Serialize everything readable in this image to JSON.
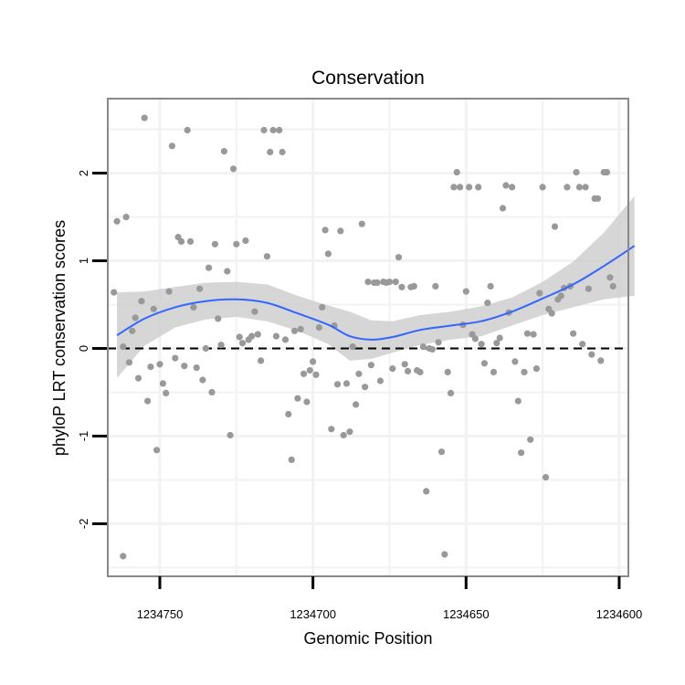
{
  "chart_data": {
    "type": "scatter",
    "title": "Conservation",
    "xlabel": "Genomic Position",
    "ylabel": "phyloP LRT conservation scores",
    "x_reversed": true,
    "xlim": [
      1234767,
      1234597
    ],
    "ylim": [
      -2.6,
      2.85
    ],
    "x_ticks": [
      1234750,
      1234700,
      1234650,
      1234600
    ],
    "y_ticks": [
      -2,
      -1,
      0,
      1,
      2
    ],
    "hline": 0,
    "colors": {
      "points": "#999999",
      "smooth": "#3366ff",
      "ribbon": "#cccccc",
      "panel_border": "#888888",
      "grid": "#f2f2f2"
    },
    "points": [
      [
        1234765,
        0.64
      ],
      [
        1234764,
        1.45
      ],
      [
        1234761,
        1.5
      ],
      [
        1234762,
        0.02
      ],
      [
        1234762,
        -2.37
      ],
      [
        1234760,
        -0.16
      ],
      [
        1234759,
        0.2
      ],
      [
        1234758,
        0.35
      ],
      [
        1234757,
        -0.34
      ],
      [
        1234756,
        0.54
      ],
      [
        1234755,
        2.63
      ],
      [
        1234754,
        -0.6
      ],
      [
        1234753,
        -0.21
      ],
      [
        1234752,
        0.45
      ],
      [
        1234751,
        -1.16
      ],
      [
        1234750,
        -0.18
      ],
      [
        1234749,
        -0.4
      ],
      [
        1234748,
        -0.51
      ],
      [
        1234747,
        0.65
      ],
      [
        1234746,
        2.31
      ],
      [
        1234745,
        -0.11
      ],
      [
        1234744,
        1.27
      ],
      [
        1234743,
        1.22
      ],
      [
        1234742,
        -0.2
      ],
      [
        1234741,
        2.49
      ],
      [
        1234740,
        1.22
      ],
      [
        1234739,
        0.47
      ],
      [
        1234738,
        -0.22
      ],
      [
        1234737,
        0.68
      ],
      [
        1234736,
        -0.36
      ],
      [
        1234735,
        0.0
      ],
      [
        1234734,
        0.92
      ],
      [
        1234733,
        -0.5
      ],
      [
        1234732,
        1.19
      ],
      [
        1234731,
        0.34
      ],
      [
        1234730,
        0.04
      ],
      [
        1234729,
        2.25
      ],
      [
        1234728,
        0.88
      ],
      [
        1234727,
        -0.99
      ],
      [
        1234726,
        2.05
      ],
      [
        1234725,
        1.19
      ],
      [
        1234724,
        0.13
      ],
      [
        1234723,
        0.06
      ],
      [
        1234722,
        1.23
      ],
      [
        1234721,
        0.1
      ],
      [
        1234720,
        0.14
      ],
      [
        1234719,
        0.42
      ],
      [
        1234718,
        0.16
      ],
      [
        1234717,
        -0.14
      ],
      [
        1234716,
        2.49
      ],
      [
        1234715,
        1.05
      ],
      [
        1234714,
        2.24
      ],
      [
        1234713,
        2.49
      ],
      [
        1234712,
        0.14
      ],
      [
        1234711,
        2.49
      ],
      [
        1234710,
        2.24
      ],
      [
        1234709,
        0.1
      ],
      [
        1234708,
        -0.75
      ],
      [
        1234707,
        -1.27
      ],
      [
        1234706,
        0.2
      ],
      [
        1234705,
        -0.57
      ],
      [
        1234704,
        0.22
      ],
      [
        1234703,
        -0.29
      ],
      [
        1234702,
        -0.61
      ],
      [
        1234701,
        -0.25
      ],
      [
        1234700,
        -0.15
      ],
      [
        1234699,
        -0.3
      ],
      [
        1234698,
        0.24
      ],
      [
        1234697,
        0.47
      ],
      [
        1234696,
        1.35
      ],
      [
        1234695,
        1.08
      ],
      [
        1234694,
        -0.92
      ],
      [
        1234693,
        0.26
      ],
      [
        1234692,
        -0.41
      ],
      [
        1234691,
        1.34
      ],
      [
        1234690,
        -0.99
      ],
      [
        1234689,
        -0.4
      ],
      [
        1234688,
        -0.95
      ],
      [
        1234687,
        0.02
      ],
      [
        1234686,
        -0.64
      ],
      [
        1234685,
        -0.29
      ],
      [
        1234684,
        1.42
      ],
      [
        1234683,
        -0.44
      ],
      [
        1234682,
        0.76
      ],
      [
        1234681,
        -0.19
      ],
      [
        1234680,
        0.75
      ],
      [
        1234679,
        0.75
      ],
      [
        1234678,
        -0.37
      ],
      [
        1234677,
        0.76
      ],
      [
        1234676,
        0.75
      ],
      [
        1234675,
        0.76
      ],
      [
        1234674,
        -0.23
      ],
      [
        1234673,
        0.76
      ],
      [
        1234672,
        1.04
      ],
      [
        1234671,
        0.7
      ],
      [
        1234670,
        -0.18
      ],
      [
        1234669,
        -0.26
      ],
      [
        1234668,
        0.7
      ],
      [
        1234667,
        0.71
      ],
      [
        1234666,
        -0.25
      ],
      [
        1234665,
        -0.27
      ],
      [
        1234664,
        0.02
      ],
      [
        1234663,
        -1.63
      ],
      [
        1234662,
        0.0
      ],
      [
        1234661,
        -0.01
      ],
      [
        1234660,
        0.71
      ],
      [
        1234659,
        0.07
      ],
      [
        1234658,
        -1.18
      ],
      [
        1234657,
        -2.35
      ],
      [
        1234656,
        -0.27
      ],
      [
        1234655,
        -0.51
      ],
      [
        1234654,
        1.84
      ],
      [
        1234653,
        2.01
      ],
      [
        1234652,
        1.84
      ],
      [
        1234651,
        0.27
      ],
      [
        1234650,
        0.65
      ],
      [
        1234649,
        1.84
      ],
      [
        1234648,
        0.16
      ],
      [
        1234647,
        0.11
      ],
      [
        1234646,
        1.84
      ],
      [
        1234645,
        0.05
      ],
      [
        1234644,
        -0.17
      ],
      [
        1234643,
        0.52
      ],
      [
        1234642,
        0.71
      ],
      [
        1234641,
        -0.27
      ],
      [
        1234640,
        0.06
      ],
      [
        1234639,
        0.12
      ],
      [
        1234638,
        1.6
      ],
      [
        1234637,
        1.86
      ],
      [
        1234636,
        0.41
      ],
      [
        1234635,
        1.84
      ],
      [
        1234634,
        -0.15
      ],
      [
        1234633,
        -0.6
      ],
      [
        1234632,
        -1.19
      ],
      [
        1234631,
        -0.27
      ],
      [
        1234630,
        0.17
      ],
      [
        1234629,
        -1.04
      ],
      [
        1234628,
        0.16
      ],
      [
        1234627,
        -0.23
      ],
      [
        1234626,
        0.63
      ],
      [
        1234625,
        1.84
      ],
      [
        1234624,
        -1.47
      ],
      [
        1234623,
        0.45
      ],
      [
        1234622,
        0.4
      ],
      [
        1234621,
        1.39
      ],
      [
        1234620,
        0.56
      ],
      [
        1234619,
        0.6
      ],
      [
        1234618,
        0.69
      ],
      [
        1234617,
        1.84
      ],
      [
        1234616,
        0.71
      ],
      [
        1234615,
        0.17
      ],
      [
        1234614,
        2.01
      ],
      [
        1234613,
        1.84
      ],
      [
        1234612,
        0.05
      ],
      [
        1234611,
        1.84
      ],
      [
        1234610,
        0.68
      ],
      [
        1234609,
        -0.07
      ],
      [
        1234608,
        1.71
      ],
      [
        1234607,
        1.71
      ],
      [
        1234606,
        -0.14
      ],
      [
        1234605,
        2.01
      ],
      [
        1234604,
        2.01
      ],
      [
        1234603,
        0.81
      ],
      [
        1234602,
        0.71
      ]
    ],
    "smooth": {
      "x": [
        1234764,
        1234755,
        1234745,
        1234735,
        1234725,
        1234715,
        1234705,
        1234695,
        1234688,
        1234681,
        1234674,
        1234665,
        1234655,
        1234645,
        1234635,
        1234625,
        1234615,
        1234605,
        1234595
      ],
      "y": [
        0.15,
        0.34,
        0.47,
        0.54,
        0.56,
        0.52,
        0.4,
        0.27,
        0.14,
        0.1,
        0.13,
        0.21,
        0.26,
        0.31,
        0.42,
        0.57,
        0.73,
        0.94,
        1.17
      ],
      "lower": [
        -0.34,
        0.03,
        0.24,
        0.33,
        0.36,
        0.31,
        0.2,
        0.05,
        -0.14,
        -0.12,
        -0.05,
        0.04,
        0.1,
        0.14,
        0.26,
        0.38,
        0.47,
        0.56,
        0.6
      ],
      "upper": [
        0.64,
        0.65,
        0.7,
        0.75,
        0.76,
        0.73,
        0.6,
        0.49,
        0.42,
        0.32,
        0.31,
        0.38,
        0.42,
        0.48,
        0.58,
        0.76,
        0.99,
        1.32,
        1.74
      ]
    }
  }
}
